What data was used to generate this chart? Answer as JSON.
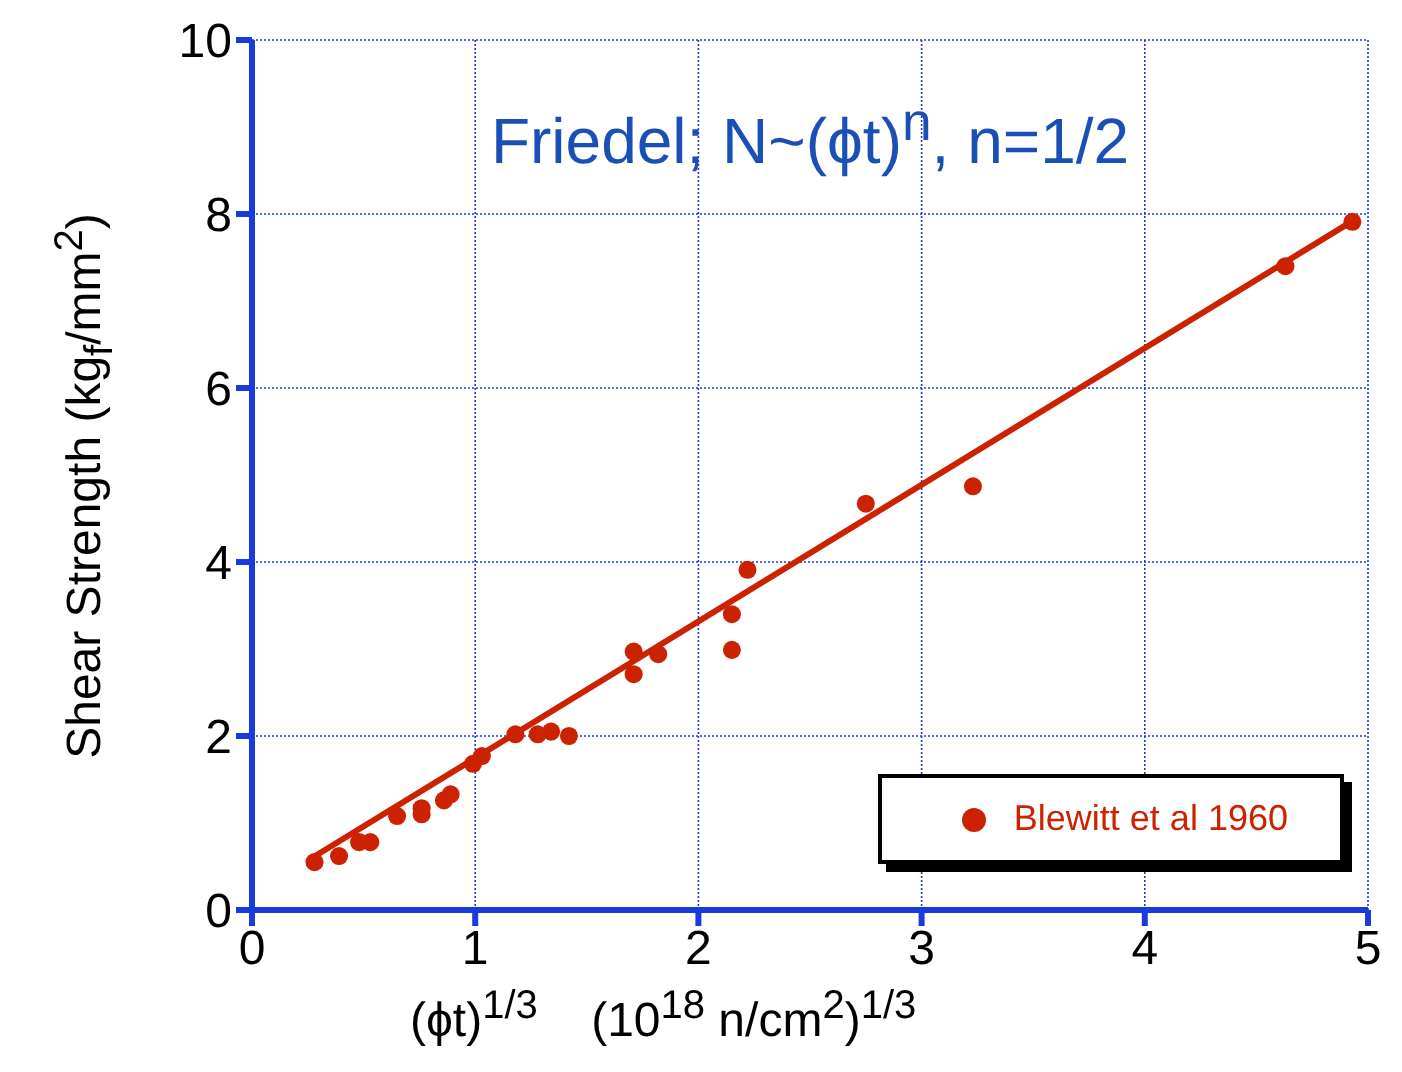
{
  "chart_data": {
    "type": "scatter",
    "title": "Friedel; N~(ϕt)$^{n}$, n=1/2",
    "xlabel": "(ϕt)$^{1/3}$    (10$^{18}$ n/cm$^{2}$)$^{1/3}$",
    "ylabel": "Shear Strength (kg$_{f}$/mm$^{2}$)",
    "xlim": [
      0,
      5
    ],
    "xticks": [
      0,
      1,
      2,
      3,
      4,
      5
    ],
    "ylim": [
      0,
      10
    ],
    "yticks": [
      0,
      2,
      4,
      6,
      8,
      10
    ],
    "grid": true,
    "legend": "bottom right",
    "series": [
      {
        "name": "Blewitt et al 1960",
        "marker": "circle",
        "color": "#cc2200",
        "x": [
          0.28,
          0.39,
          0.48,
          0.53,
          0.65,
          0.76,
          0.76,
          0.86,
          0.89,
          0.99,
          1.03,
          1.18,
          1.28,
          1.34,
          1.42,
          1.71,
          1.71,
          1.82,
          2.15,
          2.15,
          2.22,
          2.75,
          3.23,
          4.63,
          4.93
        ],
        "values": [
          0.55,
          0.62,
          0.78,
          0.78,
          1.08,
          1.17,
          1.1,
          1.26,
          1.33,
          1.68,
          1.77,
          2.02,
          2.02,
          2.05,
          2.0,
          2.71,
          2.97,
          2.94,
          2.99,
          3.4,
          3.91,
          4.67,
          4.87,
          7.4,
          7.91
        ]
      },
      {
        "type": "line",
        "marker": "none",
        "color": "#cc2200",
        "x": [
          0.27,
          4.95
        ],
        "values": [
          0.6,
          7.95
        ]
      }
    ]
  }
}
